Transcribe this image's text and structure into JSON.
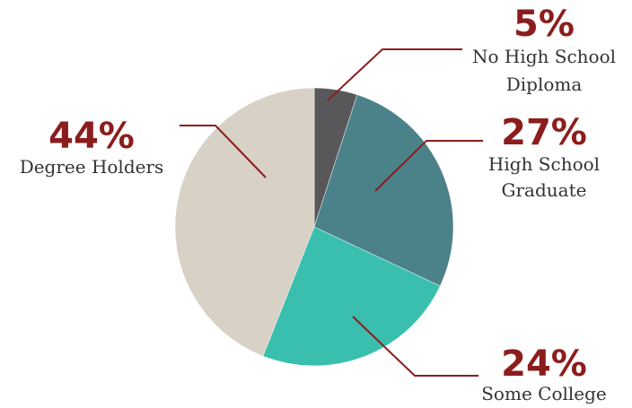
{
  "chart_data": {
    "type": "pie",
    "slices": [
      {
        "label": [
          "No High School",
          "Diploma"
        ],
        "value": 5,
        "display": "5%",
        "color": "#58585b"
      },
      {
        "label": [
          "High School",
          "Graduate"
        ],
        "value": 27,
        "display": "27%",
        "color": "#4b8289"
      },
      {
        "label": [
          "Some College"
        ],
        "value": 24,
        "display": "24%",
        "color": "#3abfae"
      },
      {
        "label": [
          "Degree Holders"
        ],
        "value": 44,
        "display": "44%",
        "color": "#d8d1c6"
      }
    ],
    "leader_color": "#8c1d1d"
  }
}
